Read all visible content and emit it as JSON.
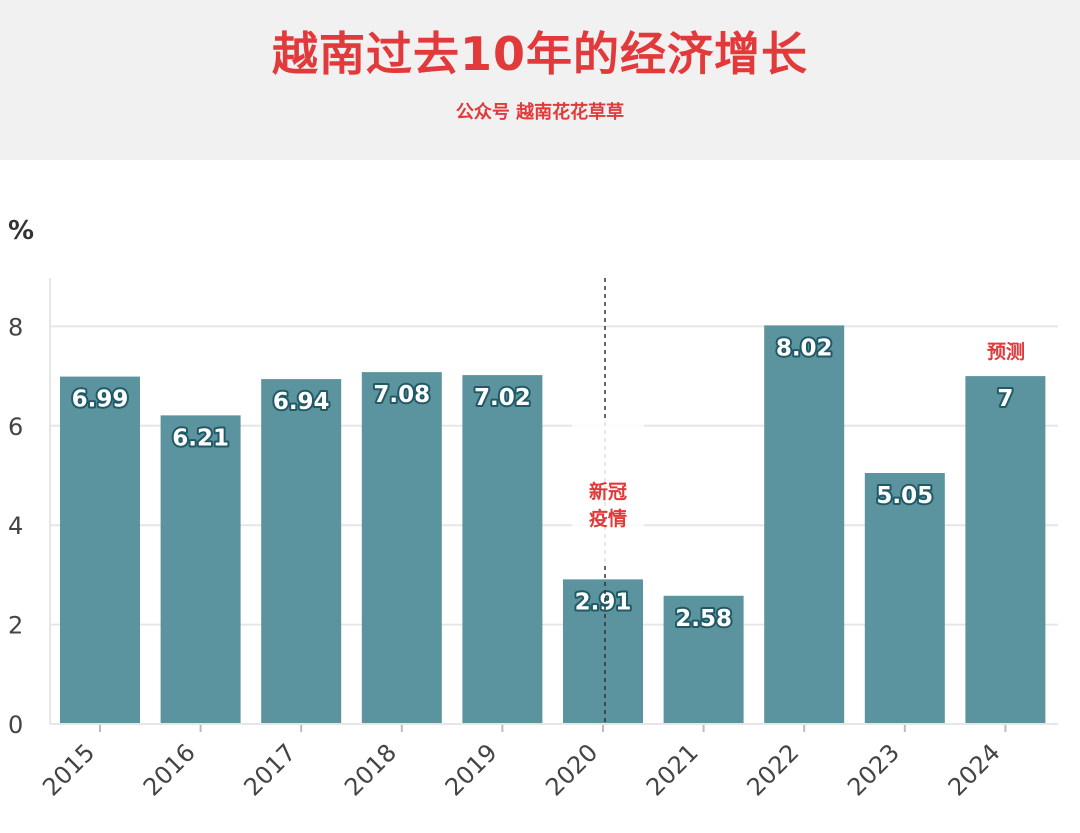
{
  "header": {
    "title": "越南过去10年的经济增长",
    "subtitle": "公众号 越南花花草草"
  },
  "chart_data": {
    "type": "bar",
    "ylabel": "%",
    "ylim": [
      0,
      9
    ],
    "yticks": [
      "0",
      "2",
      "4",
      "6",
      "8"
    ],
    "categories": [
      "2015",
      "2016",
      "2017",
      "2018",
      "2019",
      "2020",
      "2021",
      "2022",
      "2023",
      "2024"
    ],
    "values": [
      6.99,
      6.21,
      6.94,
      7.08,
      7.02,
      2.91,
      2.58,
      8.02,
      5.05,
      7
    ],
    "value_labels": [
      "6.99",
      "6.21",
      "6.94",
      "7.08",
      "7.02",
      "2.91",
      "2.58",
      "8.02",
      "5.05",
      "7"
    ],
    "bar_color": "#5b939f",
    "grid": true,
    "annotations": {
      "covid": "新冠\n疫情",
      "covid_line_at": "2020",
      "forecast": "预测",
      "forecast_at": "2024"
    }
  },
  "colors": {
    "accent": "#e2393b",
    "bar": "#5b939f",
    "header_bg": "#f1f1f1"
  }
}
